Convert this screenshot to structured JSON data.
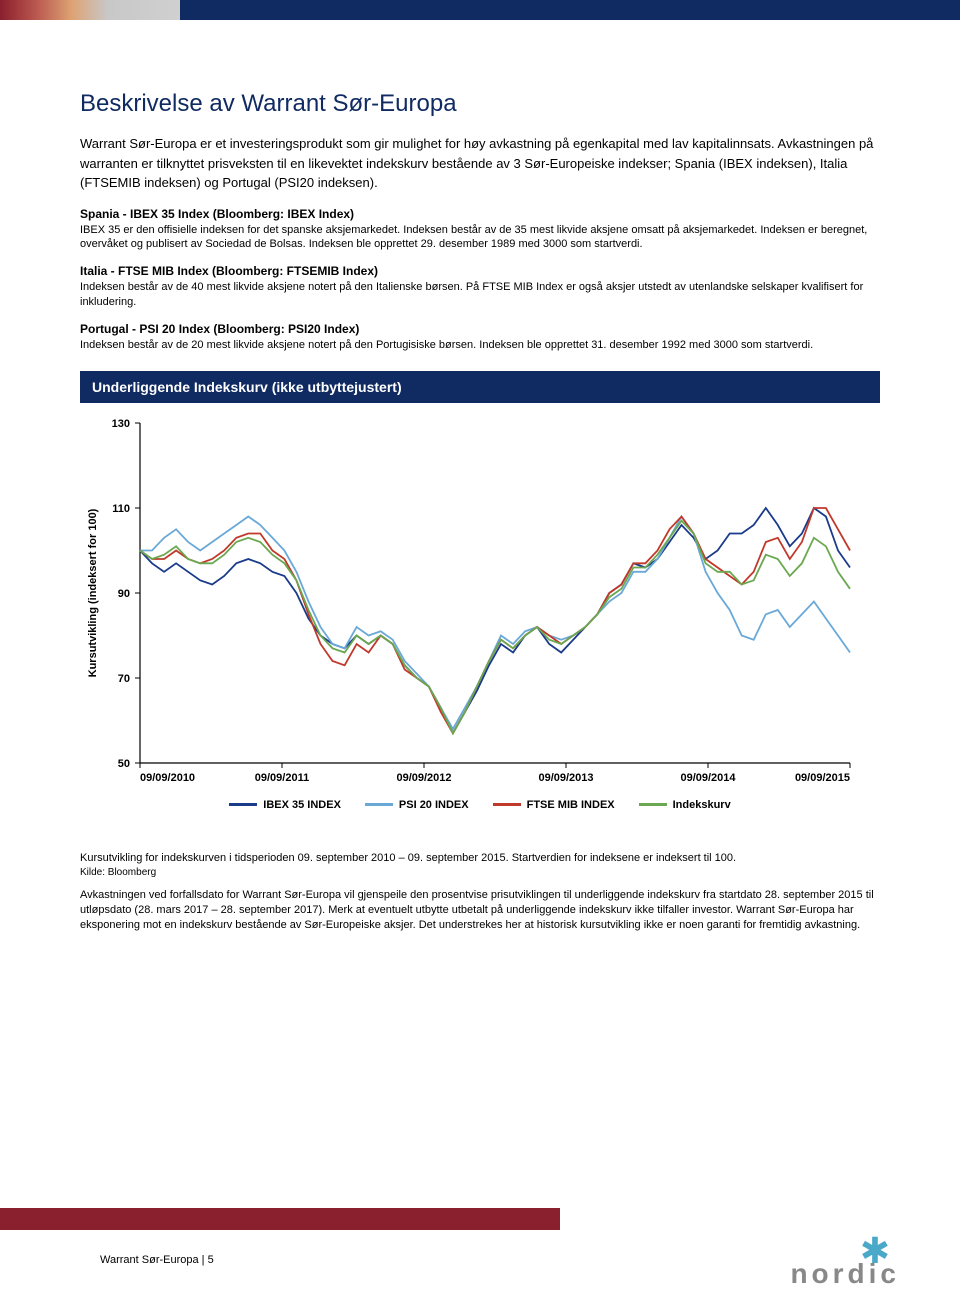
{
  "page_title": "Beskrivelse av Warrant Sør-Europa",
  "intro_para_1": "Warrant Sør-Europa  er et investeringsprodukt som gir mulighet for høy avkastning på egenkapital med lav kapitalinnsats. Avkastningen på warranten er tilknyttet prisveksten til en likevektet indekskurv bestående av 3 Sør-Europeiske indekser; Spania (IBEX indeksen), Italia (FTSEMIB indeksen) og Portugal (PSI20 indeksen).",
  "spain_heading": "Spania - IBEX 35 Index (Bloomberg: IBEX Index)",
  "spain_body": "IBEX 35 er den offisielle indeksen for det spanske aksjemarkedet. Indeksen består av de 35 mest likvide aksjene omsatt på aksjemarkedet. Indeksen er beregnet, overvåket og publisert av Sociedad de Bolsas. Indeksen ble opprettet 29. desember 1989 med 3000 som startverdi.",
  "italy_heading": "Italia - FTSE MIB Index (Bloomberg: FTSEMIB Index)",
  "italy_body": "Indeksen består av de 40 mest likvide aksjene notert på den Italienske børsen. På FTSE MIB Index er også aksjer utstedt av utenlandske selskaper kvalifisert for inkludering.",
  "portugal_heading": "Portugal - PSI 20 Index (Bloomberg: PSI20 Index)",
  "portugal_body": "Indeksen består av de 20 mest likvide aksjene notert på den Portugisiske børsen. Indeksen ble opprettet 31. desember 1992 med 3000 som startverdi.",
  "chart_header": "Underliggende Indekskurv (ikke utbyttejustert)",
  "chart": {
    "type": "line",
    "ylabel": "Kursutvikling (indeksert for 100)",
    "ylim": [
      50,
      130
    ],
    "ytick_step": 20,
    "yticks": [
      50,
      70,
      90,
      110,
      130
    ],
    "x_labels": [
      "09/09/2010",
      "09/09/2011",
      "09/09/2012",
      "09/09/2013",
      "09/09/2014",
      "09/09/2015"
    ],
    "x_points": 60,
    "background_color": "#ffffff",
    "axis_color": "#000000",
    "tick_fontsize": 11,
    "label_fontsize": 11,
    "line_width": 1.8,
    "series": [
      {
        "name": "IBEX 35 INDEX",
        "color": "#1a3a8a",
        "values": [
          100,
          97,
          95,
          97,
          95,
          93,
          92,
          94,
          97,
          98,
          97,
          95,
          94,
          90,
          84,
          80,
          78,
          77,
          80,
          78,
          80,
          78,
          73,
          70,
          68,
          63,
          57,
          62,
          67,
          73,
          78,
          76,
          80,
          82,
          78,
          76,
          79,
          82,
          85,
          90,
          92,
          97,
          96,
          98,
          102,
          106,
          103,
          98,
          100,
          104,
          104,
          106,
          110,
          106,
          101,
          104,
          110,
          108,
          100,
          96
        ]
      },
      {
        "name": "PSI 20 INDEX",
        "color": "#6aa8d8",
        "values": [
          100,
          100,
          103,
          105,
          102,
          100,
          102,
          104,
          106,
          108,
          106,
          103,
          100,
          95,
          88,
          82,
          78,
          77,
          82,
          80,
          81,
          79,
          74,
          71,
          68,
          63,
          58,
          63,
          68,
          74,
          80,
          78,
          81,
          82,
          80,
          79,
          80,
          82,
          85,
          88,
          90,
          95,
          95,
          98,
          103,
          108,
          104,
          95,
          90,
          86,
          80,
          79,
          85,
          86,
          82,
          85,
          88,
          84,
          80,
          76
        ]
      },
      {
        "name": "FTSE MIB INDEX",
        "color": "#c0392b",
        "values": [
          100,
          98,
          98,
          100,
          98,
          97,
          98,
          100,
          103,
          104,
          104,
          100,
          98,
          93,
          85,
          78,
          74,
          73,
          78,
          76,
          80,
          78,
          72,
          70,
          68,
          62,
          57,
          62,
          68,
          74,
          79,
          77,
          80,
          82,
          80,
          78,
          80,
          82,
          85,
          90,
          92,
          97,
          97,
          100,
          105,
          108,
          104,
          98,
          96,
          94,
          92,
          95,
          102,
          103,
          98,
          102,
          110,
          110,
          105,
          100
        ]
      },
      {
        "name": "Indekskurv",
        "color": "#6aa84f",
        "values": [
          100,
          98,
          99,
          101,
          98,
          97,
          97,
          99,
          102,
          103,
          102,
          99,
          97,
          93,
          86,
          80,
          77,
          76,
          80,
          78,
          80,
          78,
          73,
          70,
          68,
          63,
          57,
          62,
          68,
          74,
          79,
          77,
          80,
          82,
          79,
          78,
          80,
          82,
          85,
          89,
          91,
          96,
          96,
          99,
          103,
          107,
          104,
          97,
          95,
          95,
          92,
          93,
          99,
          98,
          94,
          97,
          103,
          101,
          95,
          91
        ]
      }
    ]
  },
  "legend": [
    {
      "label": "IBEX 35 INDEX",
      "color": "#1a3a8a"
    },
    {
      "label": "PSI 20 INDEX",
      "color": "#6aa8d8"
    },
    {
      "label": "FTSE MIB INDEX",
      "color": "#c0392b"
    },
    {
      "label": "Indekskurv",
      "color": "#6aa84f"
    }
  ],
  "caption": "Kursutvikling for indekskurven i tidsperioden 09. september 2010 – 09. september 2015. Startverdien for indeksene er indeksert til 100.",
  "source": "Kilde: Bloomberg",
  "disclaimer": "Avkastningen ved forfallsdato for Warrant Sør-Europa vil gjenspeile den prosentvise prisutviklingen til underliggende indekskurv fra startdato 28. september 2015 til utløpsdato (28. mars 2017 – 28. september 2017). Merk at eventuelt utbytte utbetalt på underliggende indekskurv ikke tilfaller investor. Warrant Sør-Europa  har eksponering mot en indekskurv bestående av Sør-Europeiske aksjer. Det understrekes her at historisk kursutvikling ikke er noen garanti for fremtidig avkastning.",
  "footer_text": "Warrant Sør-Europa  | 5",
  "logo_text": "nordic"
}
